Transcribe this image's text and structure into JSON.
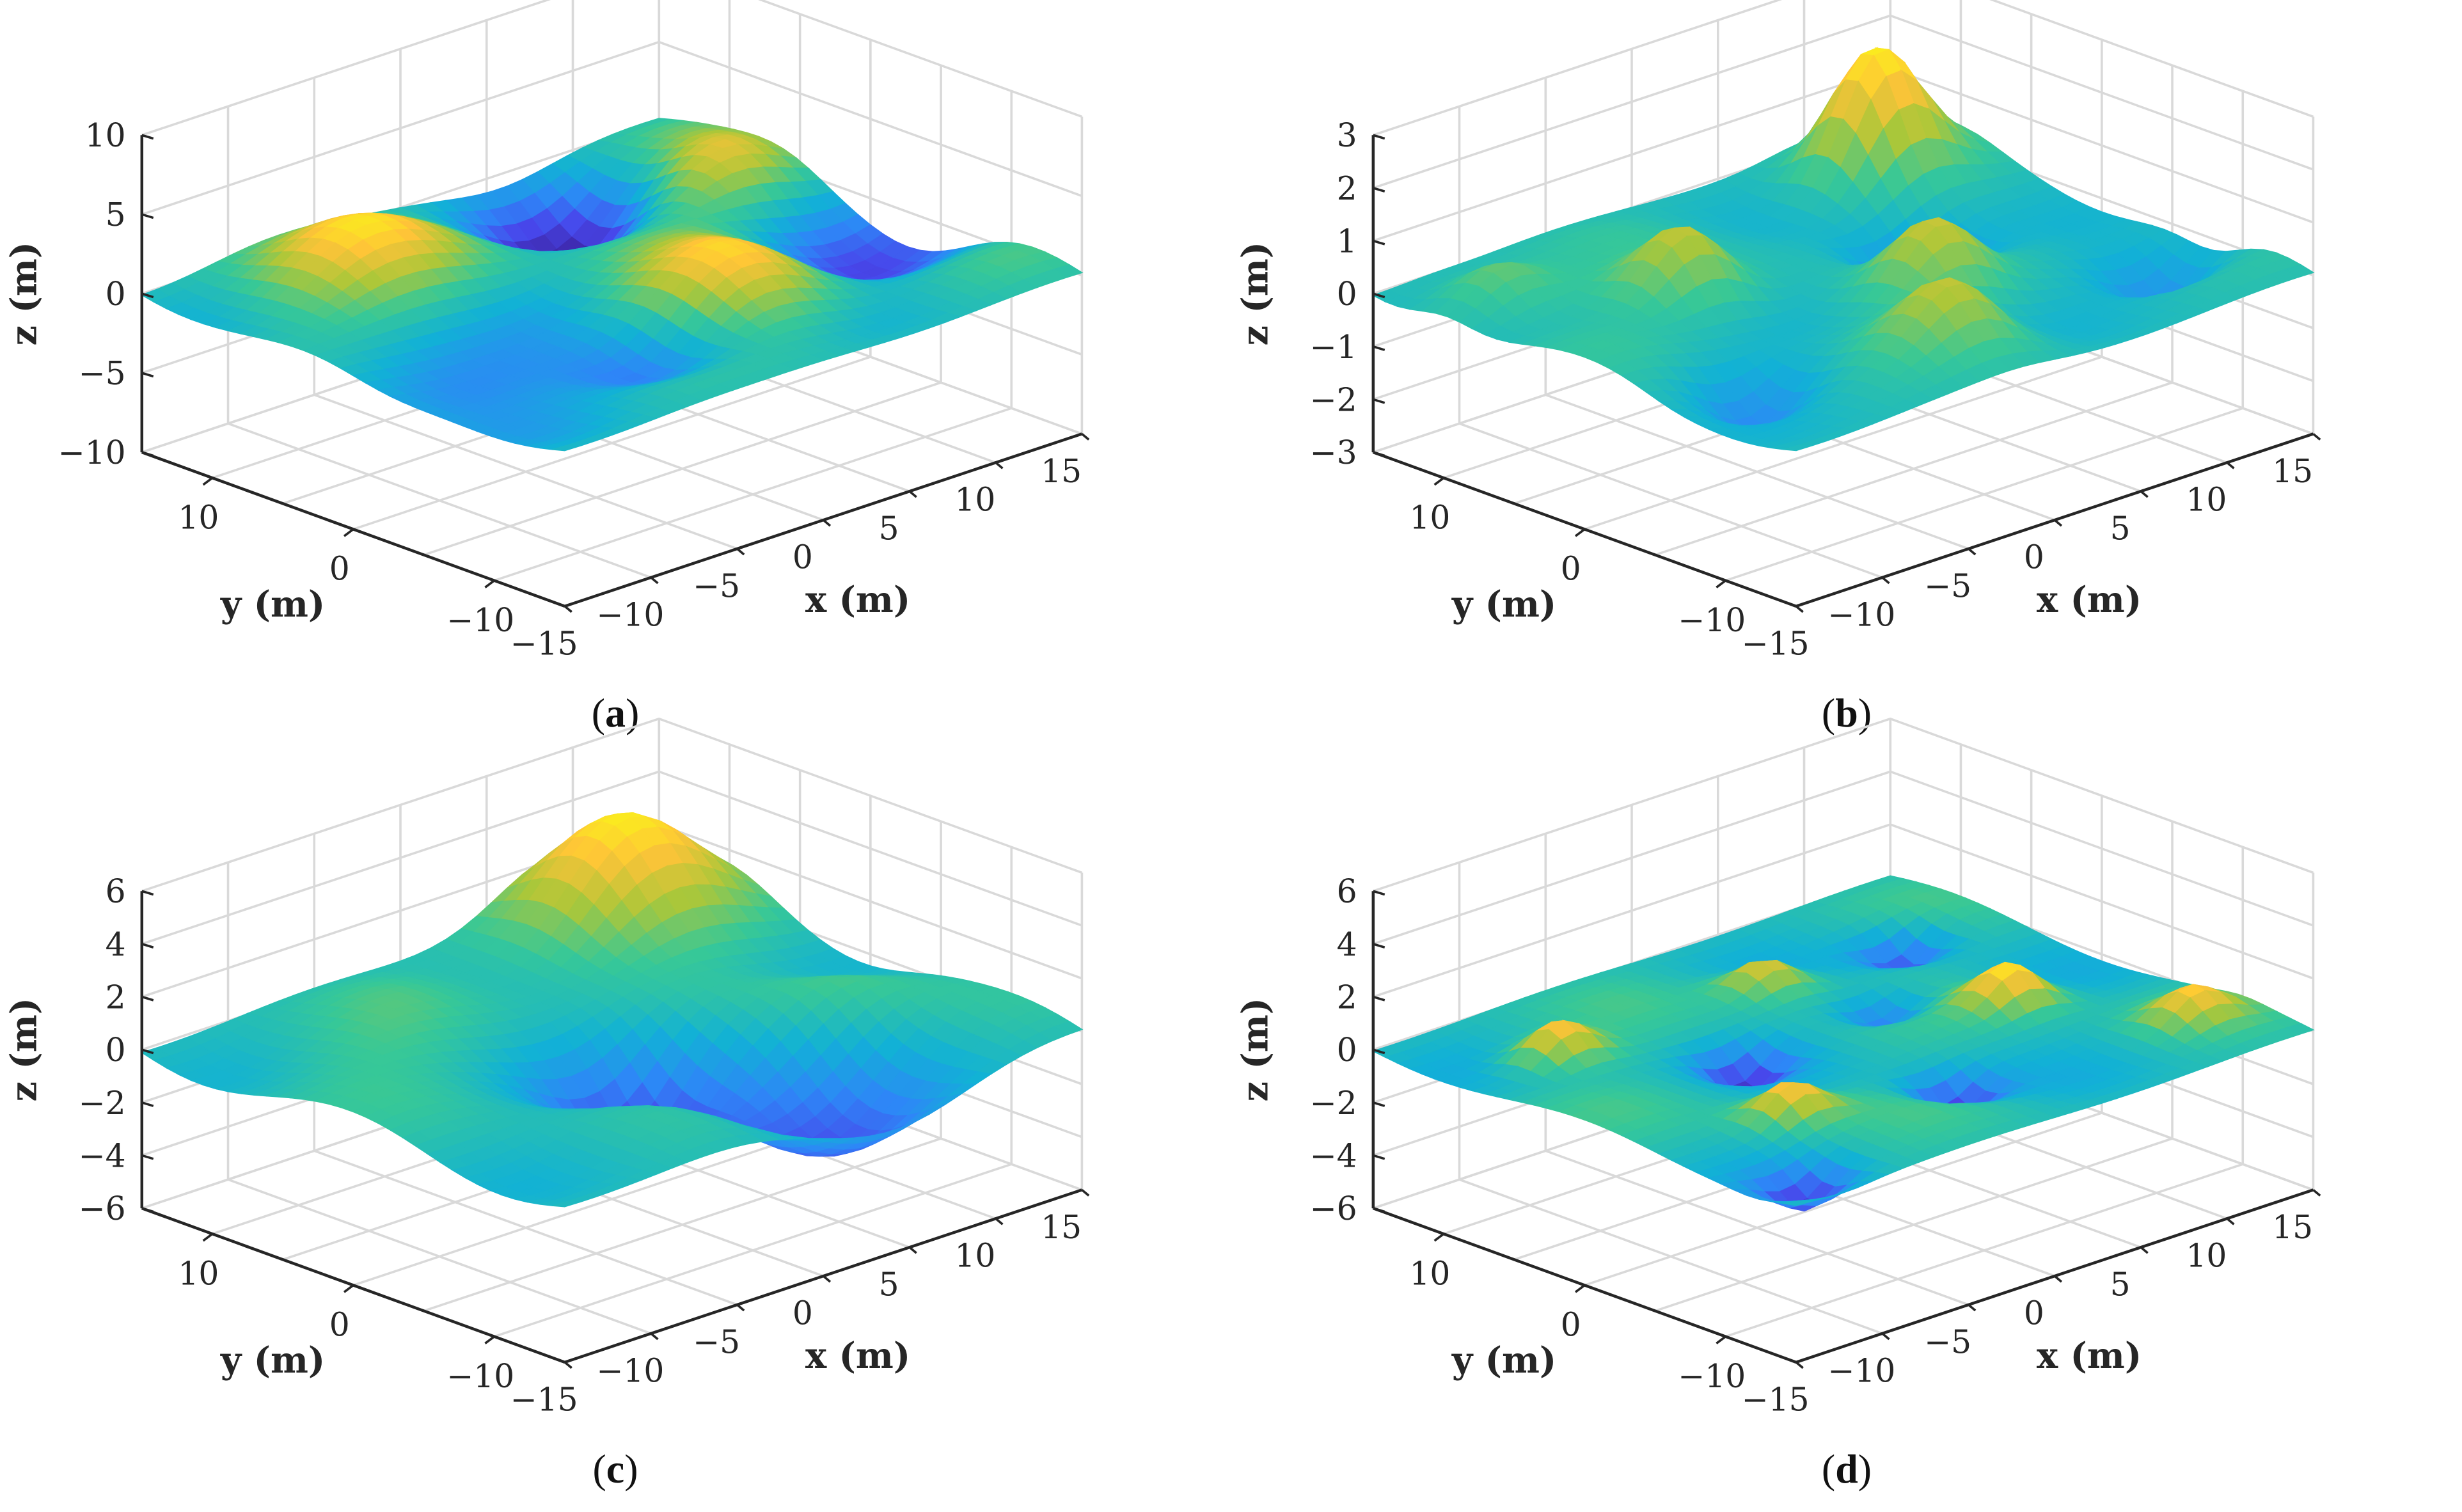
{
  "chart_data": [
    {
      "type": "surface3d",
      "panel": "a",
      "caption_open": "(",
      "caption_letter": "a",
      "caption_close": ")",
      "xlabel": "x (m)",
      "ylabel": "y (m)",
      "zlabel": "z (m)",
      "xlim": [
        -15,
        15
      ],
      "ylim": [
        -15,
        15
      ],
      "zlim": [
        -10,
        10
      ],
      "xticks": [
        "−15",
        "−10",
        "−5",
        "0",
        "5",
        "10",
        "15"
      ],
      "yticks": [
        "−10",
        "0",
        "10"
      ],
      "zticks": [
        "−10",
        "−5",
        "0",
        "5",
        "10"
      ],
      "grid": true,
      "surface": {
        "amplitude": 4,
        "features": [
          {
            "x": -8,
            "y": 9,
            "h": 3.0,
            "w": 5
          },
          {
            "x": 6,
            "y": 10,
            "h": -3.5,
            "w": 4
          },
          {
            "x": 2,
            "y": -6,
            "h": 3.5,
            "w": 5
          },
          {
            "x": -4,
            "y": -8,
            "h": -3.0,
            "w": 4
          },
          {
            "x": 12,
            "y": -4,
            "h": -2.5,
            "w": 5
          },
          {
            "x": 11,
            "y": 6,
            "h": 2.5,
            "w": 4
          },
          {
            "x": -12,
            "y": -2,
            "h": -2.0,
            "w": 5
          }
        ]
      }
    },
    {
      "type": "surface3d",
      "panel": "b",
      "caption_open": "(",
      "caption_letter": "b",
      "caption_close": ")",
      "xlabel": "x (m)",
      "ylabel": "y (m)",
      "zlabel": "z (m)",
      "xlim": [
        -15,
        15
      ],
      "ylim": [
        -15,
        15
      ],
      "zlim": [
        -3,
        3
      ],
      "xticks": [
        "−15",
        "−10",
        "−5",
        "0",
        "5",
        "10",
        "15"
      ],
      "yticks": [
        "−10",
        "0",
        "10"
      ],
      "zticks": [
        "−3",
        "−2",
        "−1",
        "0",
        "1",
        "2",
        "3"
      ],
      "grid": true,
      "surface": {
        "amplitude": 1.2,
        "features": [
          {
            "x": 10,
            "y": 10,
            "h": 2.3,
            "w": 3
          },
          {
            "x": -6,
            "y": 4,
            "h": 1.4,
            "w": 3
          },
          {
            "x": 2,
            "y": -4,
            "h": 1.3,
            "w": 3
          },
          {
            "x": -2,
            "y": -10,
            "h": 1.1,
            "w": 3
          },
          {
            "x": 6,
            "y": 2,
            "h": -1.4,
            "w": 3
          },
          {
            "x": -10,
            "y": -6,
            "h": -1.0,
            "w": 3
          },
          {
            "x": 12,
            "y": -8,
            "h": -1.1,
            "w": 3
          },
          {
            "x": -12,
            "y": 10,
            "h": 0.9,
            "w": 3
          }
        ]
      }
    },
    {
      "type": "surface3d",
      "panel": "c",
      "caption_open": "(",
      "caption_letter": "c",
      "caption_close": ")",
      "xlabel": "x (m)",
      "ylabel": "y (m)",
      "zlabel": "z (m)",
      "xlim": [
        -15,
        15
      ],
      "ylim": [
        -15,
        15
      ],
      "zlim": [
        -6,
        6
      ],
      "xticks": [
        "−15",
        "−10",
        "−5",
        "0",
        "5",
        "10",
        "15"
      ],
      "yticks": [
        "−10",
        "0",
        "10"
      ],
      "zticks": [
        "−6",
        "−4",
        "−2",
        "0",
        "2",
        "4",
        "6"
      ],
      "grid": true,
      "surface": {
        "amplitude": 2.5,
        "features": [
          {
            "x": 9,
            "y": 11,
            "h": 4.2,
            "w": 5
          },
          {
            "x": 0,
            "y": -2,
            "h": -3.5,
            "w": 4
          },
          {
            "x": 4,
            "y": -10,
            "h": -2.5,
            "w": 6
          },
          {
            "x": 10,
            "y": -4,
            "h": 1.2,
            "w": 4
          },
          {
            "x": -8,
            "y": 6,
            "h": 0.8,
            "w": 5
          }
        ]
      }
    },
    {
      "type": "surface3d",
      "panel": "d",
      "caption_open": "(",
      "caption_letter": "d",
      "caption_close": ")",
      "xlabel": "x (m)",
      "ylabel": "y (m)",
      "zlabel": "z (m)",
      "xlim": [
        -15,
        15
      ],
      "ylim": [
        -15,
        15
      ],
      "zlim": [
        -6,
        6
      ],
      "xticks": [
        "−15",
        "−10",
        "−5",
        "0",
        "5",
        "10",
        "15"
      ],
      "yticks": [
        "−10",
        "0",
        "10"
      ],
      "zticks": [
        "−6",
        "−4",
        "−2",
        "0",
        "2",
        "4",
        "6"
      ],
      "grid": true,
      "surface": {
        "amplitude": 1.2,
        "features": [
          {
            "x": -10,
            "y": 8,
            "h": 1.4,
            "w": 2
          },
          {
            "x": -4,
            "y": 2,
            "h": -1.3,
            "w": 2
          },
          {
            "x": 2,
            "y": 8,
            "h": 1.2,
            "w": 2
          },
          {
            "x": 8,
            "y": -2,
            "h": 1.5,
            "w": 2
          },
          {
            "x": 0,
            "y": -8,
            "h": -1.4,
            "w": 2
          },
          {
            "x": -8,
            "y": -6,
            "h": 1.3,
            "w": 2
          },
          {
            "x": 10,
            "y": 8,
            "h": -1.2,
            "w": 2
          },
          {
            "x": 12,
            "y": -10,
            "h": 1.1,
            "w": 2
          },
          {
            "x": -12,
            "y": -12,
            "h": -1.2,
            "w": 2
          },
          {
            "x": 4,
            "y": 2,
            "h": -1.0,
            "w": 2
          }
        ]
      }
    }
  ]
}
